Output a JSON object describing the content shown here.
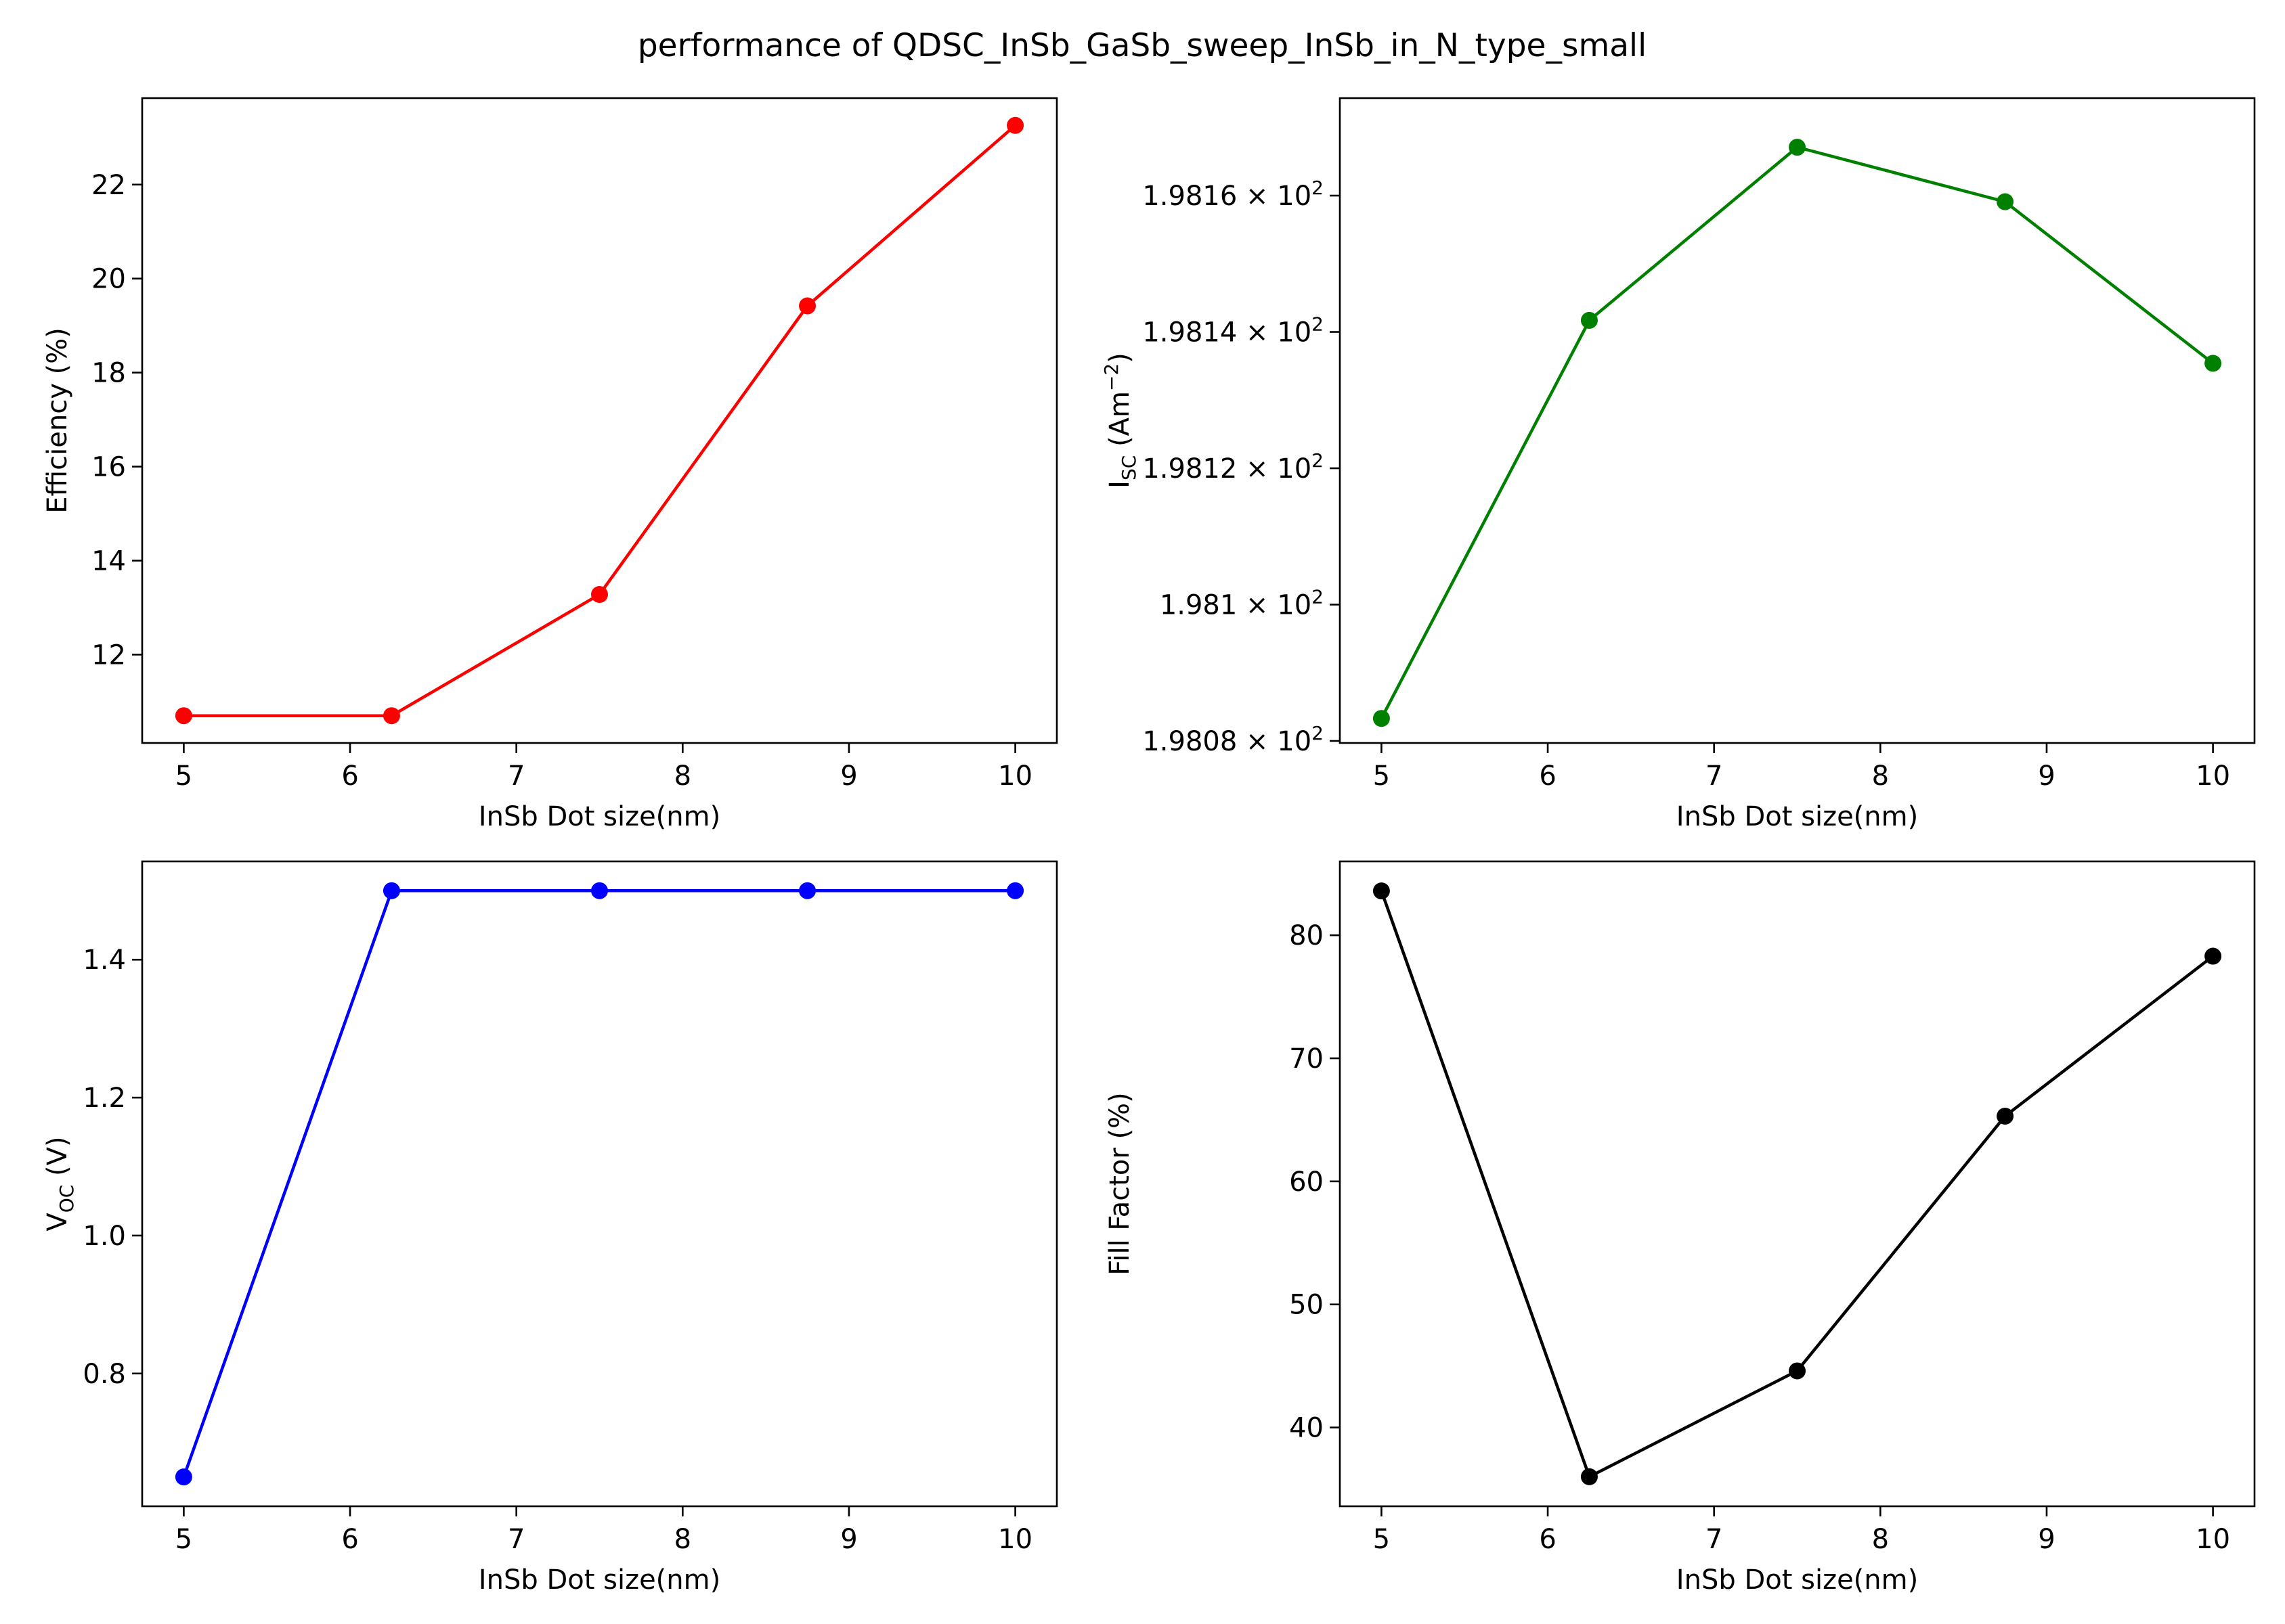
{
  "figure": {
    "title": "performance of QDSC_InSb_GaSb_sweep_InSb_in_N_type_small"
  },
  "chart_data": [
    {
      "type": "line",
      "xlabel": "InSb Dot size(nm)",
      "ylabel": "Efficiency (%)",
      "x": [
        5,
        6.25,
        7.5,
        8.75,
        10
      ],
      "series": [
        {
          "values": [
            10.7,
            10.7,
            13.28,
            19.42,
            23.26
          ],
          "color": "#ff0000"
        }
      ],
      "xlim": [
        4.75,
        10.25
      ],
      "ylim": [
        10.12,
        23.84
      ],
      "xticks": [
        5,
        6,
        7,
        8,
        9,
        10
      ],
      "yticks": [
        12,
        14,
        16,
        18,
        20,
        22
      ],
      "ytick_labels": [
        "12",
        "14",
        "16",
        "18",
        "20",
        "22"
      ],
      "grid": false
    },
    {
      "type": "line",
      "xlabel": "InSb Dot size(nm)",
      "ylabel": "I",
      "ylabel_sub": "SC",
      "ylabel_rest": " (Am",
      "ylabel_sup": "−2",
      "ylabel_end": ")",
      "x": [
        5,
        6.25,
        7.5,
        8.75,
        10
      ],
      "series": [
        {
          "values": [
            198.0833,
            198.1417,
            198.1671,
            198.1591,
            198.1354
          ],
          "color": "#008000"
        }
      ],
      "xlim": [
        4.75,
        10.25
      ],
      "ylim": [
        198.0797,
        198.1743
      ],
      "xticks": [
        5,
        6,
        7,
        8,
        9,
        10
      ],
      "yticks": [
        198.08,
        198.1,
        198.12,
        198.14,
        198.16
      ],
      "ytick_labels": [
        {
          "mantissa": "1.9808",
          "base": "10",
          "exp": "2"
        },
        {
          "mantissa": "1.981",
          "base": "10",
          "exp": "2"
        },
        {
          "mantissa": "1.9812",
          "base": "10",
          "exp": "2"
        },
        {
          "mantissa": "1.9814",
          "base": "10",
          "exp": "2"
        },
        {
          "mantissa": "1.9816",
          "base": "10",
          "exp": "2"
        }
      ],
      "scale": "log",
      "grid": false
    },
    {
      "type": "line",
      "xlabel": "InSb Dot size(nm)",
      "ylabel": "V",
      "ylabel_sub": "OC",
      "ylabel_rest": " (V)",
      "x": [
        5,
        6.25,
        7.5,
        8.75,
        10
      ],
      "series": [
        {
          "values": [
            0.65,
            1.5,
            1.5,
            1.5,
            1.5
          ],
          "color": "#0000ff"
        }
      ],
      "xlim": [
        4.75,
        10.25
      ],
      "ylim": [
        0.6075,
        1.5425
      ],
      "xticks": [
        5,
        6,
        7,
        8,
        9,
        10
      ],
      "yticks": [
        0.8,
        1.0,
        1.2,
        1.4
      ],
      "ytick_labels": [
        "0.8",
        "1.0",
        "1.2",
        "1.4"
      ],
      "grid": false
    },
    {
      "type": "line",
      "xlabel": "InSb Dot size(nm)",
      "ylabel": "Fill Factor (%)",
      "x": [
        5,
        6.25,
        7.5,
        8.75,
        10
      ],
      "series": [
        {
          "values": [
            83.6,
            36.0,
            44.6,
            65.3,
            78.3
          ],
          "color": "#000000"
        }
      ],
      "xlim": [
        4.75,
        10.25
      ],
      "ylim": [
        33.6,
        86.0
      ],
      "xticks": [
        5,
        6,
        7,
        8,
        9,
        10
      ],
      "yticks": [
        40,
        50,
        60,
        70,
        80
      ],
      "ytick_labels": [
        "40",
        "50",
        "60",
        "70",
        "80"
      ],
      "grid": false
    }
  ]
}
